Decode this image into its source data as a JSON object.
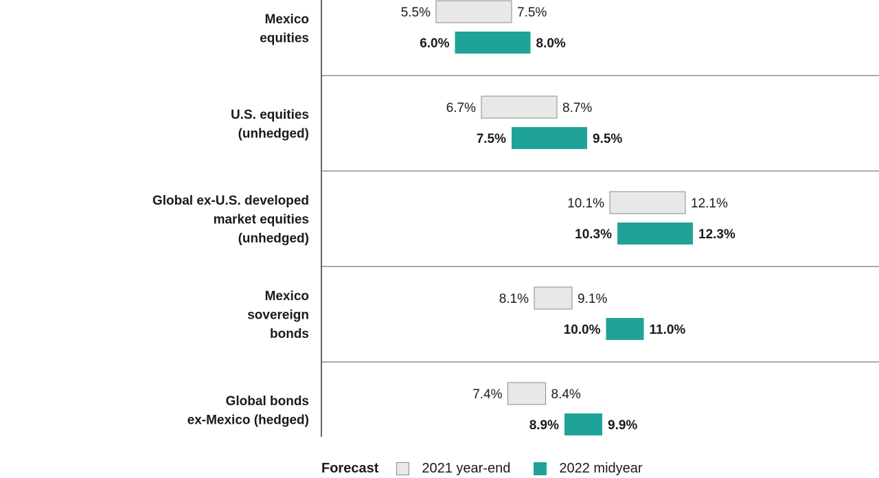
{
  "chart_data": {
    "type": "bar",
    "subtype": "range",
    "categories": [
      [
        "Mexico",
        "equities"
      ],
      [
        "U.S. equities",
        "(unhedged)"
      ],
      [
        "Global ex-U.S. developed",
        "market equities",
        "(unhedged)"
      ],
      [
        "Mexico",
        "sovereign",
        "bonds"
      ],
      [
        "Global bonds",
        "ex-Mexico (hedged)"
      ]
    ],
    "series": [
      {
        "name": "2021 year-end",
        "color": "#e8e8e8",
        "stroke": "#8a8a8a",
        "ranges": [
          [
            5.5,
            7.5
          ],
          [
            6.7,
            8.7
          ],
          [
            10.1,
            12.1
          ],
          [
            8.1,
            9.1
          ],
          [
            7.4,
            8.4
          ]
        ],
        "labels": [
          [
            "5.5%",
            "7.5%"
          ],
          [
            "6.7%",
            "8.7%"
          ],
          [
            "10.1%",
            "12.1%"
          ],
          [
            "8.1%",
            "9.1%"
          ],
          [
            "7.4%",
            "8.4%"
          ]
        ]
      },
      {
        "name": "2022 midyear",
        "color": "#1fa398",
        "ranges": [
          [
            6.0,
            8.0
          ],
          [
            7.5,
            9.5
          ],
          [
            10.3,
            12.3
          ],
          [
            10.0,
            11.0
          ],
          [
            8.9,
            9.9
          ]
        ],
        "labels": [
          [
            "6.0%",
            "8.0%"
          ],
          [
            "7.5%",
            "9.5%"
          ],
          [
            "10.3%",
            "12.3%"
          ],
          [
            "10.0%",
            "11.0%"
          ],
          [
            "8.9%",
            "9.9%"
          ]
        ]
      }
    ],
    "legend": {
      "title": "Forecast",
      "position": "bottom"
    },
    "grid": false
  }
}
